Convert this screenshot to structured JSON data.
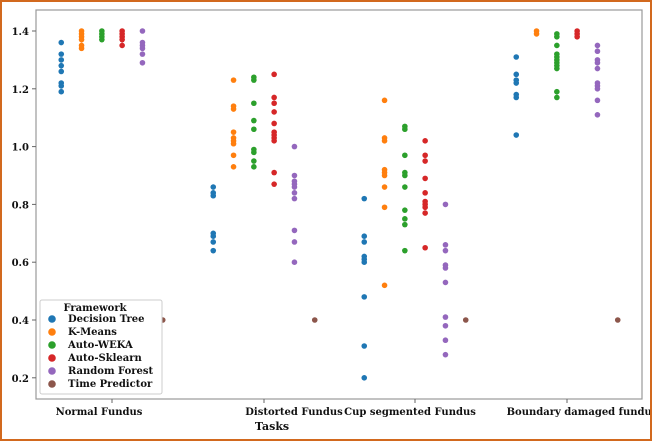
{
  "chart_data": {
    "type": "scatter",
    "subtype": "strip",
    "title": "",
    "xlabel": "Tasks",
    "ylabel": "",
    "ylim": [
      0.13,
      1.44
    ],
    "yticks": [
      "0.2",
      "0.4",
      "0.6",
      "0.8",
      "1.0",
      "1.2",
      "1.4"
    ],
    "categories": [
      "Normal Fundus",
      "Distorted Fundus",
      "Cup segmented Fundus",
      "Boundary damaged fundus"
    ],
    "legend": {
      "title": "Framework",
      "placement": "bottom-left"
    },
    "series": [
      {
        "name": "Decision Tree",
        "color": "#1f77b4",
        "values": [
          [
            1.36,
            1.32,
            1.3,
            1.28,
            1.26,
            1.22,
            1.21,
            1.19
          ],
          [
            0.86,
            0.84,
            0.83,
            0.7,
            0.69,
            0.67,
            0.64
          ],
          [
            0.82,
            0.69,
            0.67,
            0.62,
            0.61,
            0.6,
            0.48,
            0.31,
            0.2
          ],
          [
            1.31,
            1.25,
            1.23,
            1.22,
            1.18,
            1.17,
            1.04
          ]
        ]
      },
      {
        "name": "K-Means",
        "color": "#ff7f0e",
        "values": [
          [
            1.4,
            1.39,
            1.38,
            1.37,
            1.35,
            1.34
          ],
          [
            1.23,
            1.14,
            1.13,
            1.05,
            1.03,
            1.02,
            1.01,
            0.97,
            0.93
          ],
          [
            1.16,
            1.03,
            1.02,
            0.92,
            0.91,
            0.9,
            0.86,
            0.79,
            0.52
          ],
          [
            1.4,
            1.39
          ]
        ]
      },
      {
        "name": "Auto-WEKA",
        "color": "#2ca02c",
        "values": [
          [
            1.4,
            1.39,
            1.38,
            1.37
          ],
          [
            1.24,
            1.23,
            1.15,
            1.09,
            1.06,
            0.99,
            0.98,
            0.95,
            0.93
          ],
          [
            1.07,
            1.06,
            0.97,
            0.91,
            0.9,
            0.86,
            0.78,
            0.75,
            0.73,
            0.64
          ],
          [
            1.39,
            1.38,
            1.35,
            1.32,
            1.31,
            1.3,
            1.29,
            1.28,
            1.27,
            1.19,
            1.17
          ]
        ]
      },
      {
        "name": "Auto-Sklearn",
        "color": "#d62728",
        "values": [
          [
            1.4,
            1.39,
            1.38,
            1.37,
            1.35
          ],
          [
            1.25,
            1.17,
            1.15,
            1.12,
            1.08,
            1.05,
            1.04,
            1.03,
            1.02,
            0.91,
            0.87
          ],
          [
            1.02,
            0.97,
            0.95,
            0.89,
            0.84,
            0.81,
            0.8,
            0.79,
            0.77,
            0.65
          ],
          [
            1.4,
            1.39,
            1.38
          ]
        ]
      },
      {
        "name": "Random Forest",
        "color": "#9467bd",
        "values": [
          [
            1.4,
            1.36,
            1.35,
            1.34,
            1.32,
            1.29
          ],
          [
            1.0,
            0.9,
            0.88,
            0.87,
            0.86,
            0.84,
            0.82,
            0.71,
            0.67,
            0.6
          ],
          [
            0.8,
            0.66,
            0.64,
            0.59,
            0.58,
            0.53,
            0.41,
            0.38,
            0.33,
            0.28
          ],
          [
            1.35,
            1.33,
            1.3,
            1.29,
            1.27,
            1.22,
            1.21,
            1.2,
            1.16,
            1.11
          ]
        ]
      },
      {
        "name": "Time Predictor",
        "color": "#8c564b",
        "values": [
          [
            0.4
          ],
          [
            0.4
          ],
          [
            0.4
          ],
          [
            0.4
          ]
        ]
      }
    ]
  }
}
